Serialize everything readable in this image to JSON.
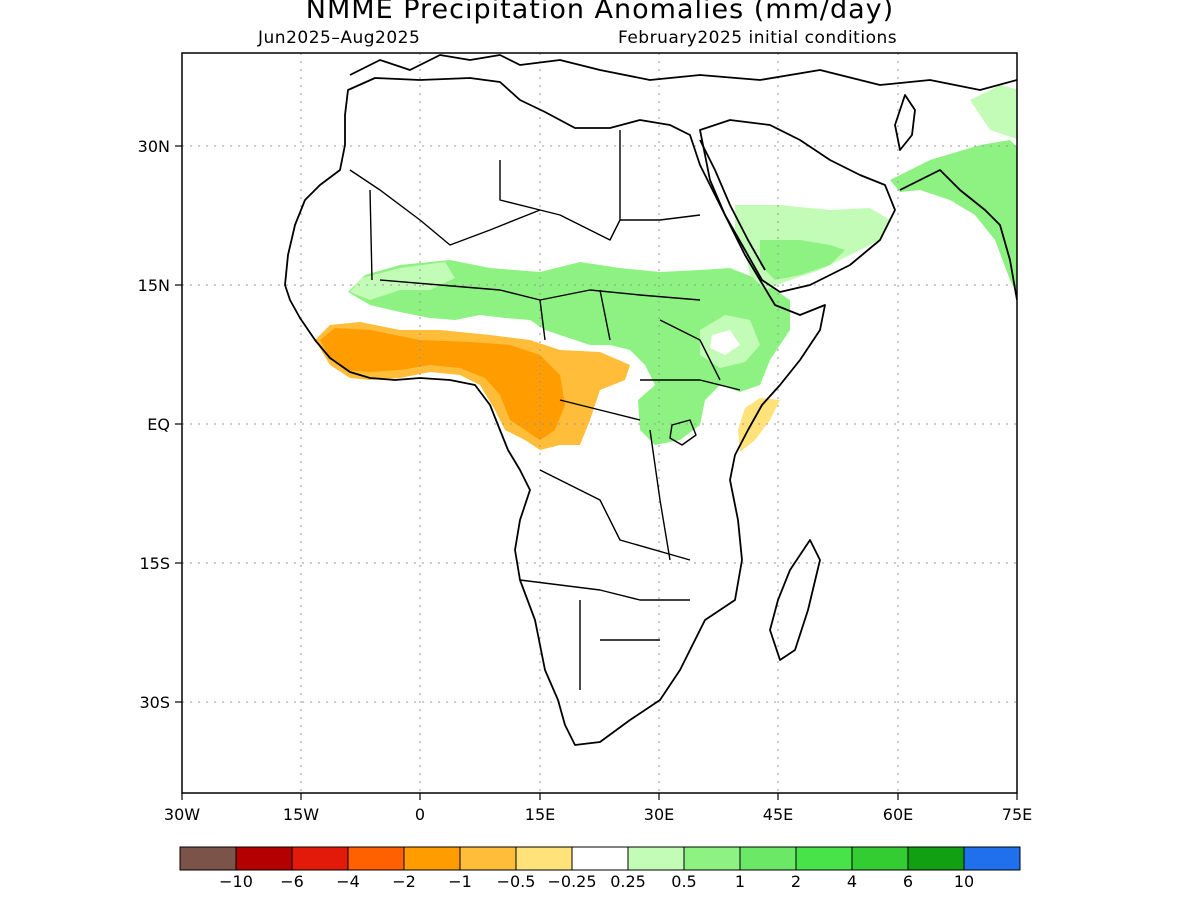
{
  "title": "NMME Precipitation Anomalies (mm/day)",
  "period": "Jun2025–Aug2025",
  "initial_conditions": "February2025 initial conditions",
  "map": {
    "lon_ticks": [
      "30W",
      "15W",
      "0",
      "15E",
      "30E",
      "45E",
      "60E",
      "75E"
    ],
    "lat_ticks": [
      "30N",
      "15N",
      "EQ",
      "15S",
      "30S"
    ],
    "extent": {
      "lon_min": -30,
      "lon_max": 75,
      "lat_min": -40,
      "lat_max": 40
    },
    "grid": "dotted"
  },
  "colorbar": {
    "colors": [
      "#7b5348",
      "#b40000",
      "#e11a0a",
      "#ff6000",
      "#ff9c00",
      "#ffbd3a",
      "#ffe27a",
      "#ffffff",
      "#c3fcb6",
      "#8ef283",
      "#6ae866",
      "#48e348",
      "#33cc33",
      "#11a011",
      "#2070ee"
    ],
    "labels": [
      "−10",
      "−6",
      "−4",
      "−2",
      "−1",
      "−0.5",
      "−0.25",
      "0.25",
      "0.5",
      "1",
      "2",
      "4",
      "6",
      "10"
    ]
  }
}
